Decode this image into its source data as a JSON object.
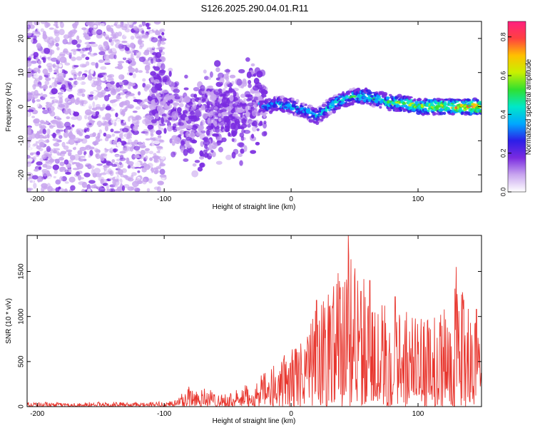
{
  "title": "S126.2025.290.04.01.R11",
  "chart_data": [
    {
      "type": "heatmap",
      "name": "spectrogram",
      "title": "S126.2025.290.04.01.R11",
      "xlabel": "Height of straight line (km)",
      "ylabel": "Frequency (Hz)",
      "xlim": [
        -208,
        150
      ],
      "ylim": [
        -25,
        25
      ],
      "xticks": [
        -200,
        -100,
        0,
        100
      ],
      "xtick_labels": [
        "-200",
        "-100",
        "0",
        "100"
      ],
      "yticks": [
        -20,
        -10,
        0,
        10,
        20
      ],
      "ytick_labels": [
        "-20",
        "-10",
        "0",
        "10",
        "20"
      ],
      "ridge": {
        "description_free": true,
        "x": [
          -110,
          -100,
          -90,
          -80,
          -70,
          -60,
          -50,
          -40,
          -30,
          -20,
          -10,
          0,
          10,
          20,
          30,
          40,
          50,
          60,
          70,
          80,
          90,
          100,
          110,
          120,
          130,
          140,
          150
        ],
        "freq": [
          8,
          3,
          -1,
          -5,
          -4,
          -1,
          -3,
          -2,
          1,
          0,
          1,
          0,
          -1,
          -3,
          0,
          2,
          3,
          3,
          2,
          1,
          1,
          0,
          0,
          0,
          0,
          0,
          0
        ],
        "peak_amplitude": [
          0.15,
          0.2,
          0.2,
          0.22,
          0.2,
          0.2,
          0.2,
          0.22,
          0.3,
          0.38,
          0.42,
          0.45,
          0.42,
          0.42,
          0.48,
          0.5,
          0.5,
          0.52,
          0.5,
          0.6,
          0.65,
          0.6,
          0.7,
          0.75,
          0.78,
          0.8,
          0.82
        ]
      },
      "colorbar": {
        "label": "Normalized spectral amplitude",
        "range": [
          0.0,
          0.88
        ],
        "ticks": [
          0.0,
          0.2,
          0.4,
          0.6,
          0.8
        ],
        "tick_labels": [
          "0.0",
          "0.2",
          "0.4",
          "0.6",
          "0.8"
        ],
        "colors": [
          "#ffffff",
          "#c9a6ef",
          "#7a2be0",
          "#2c1ee8",
          "#00a8ff",
          "#00e8c8",
          "#30e030",
          "#c8f000",
          "#ffc000",
          "#ff4040",
          "#ff2080"
        ]
      }
    },
    {
      "type": "line",
      "name": "snr",
      "xlabel": "Height of straight line (km)",
      "ylabel": "SNR (10 * v/v)",
      "xlim": [
        -208,
        150
      ],
      "ylim": [
        0,
        1900
      ],
      "xticks": [
        -200,
        -100,
        0,
        100
      ],
      "xtick_labels": [
        "-200",
        "-100",
        "0",
        "100"
      ],
      "yticks": [
        0,
        500,
        1000,
        1500
      ],
      "ytick_labels": [
        "0",
        "500",
        "1000",
        "1500"
      ],
      "color": "#e8372f",
      "envelope": {
        "x": [
          -208,
          -180,
          -150,
          -120,
          -100,
          -90,
          -80,
          -70,
          -60,
          -50,
          -40,
          -30,
          -20,
          -10,
          0,
          10,
          20,
          30,
          40,
          45,
          50,
          60,
          70,
          80,
          90,
          100,
          110,
          120,
          130,
          140,
          150
        ],
        "y": [
          60,
          40,
          55,
          45,
          60,
          90,
          280,
          230,
          180,
          150,
          200,
          300,
          380,
          520,
          650,
          800,
          1100,
          1300,
          1480,
          1900,
          1600,
          1400,
          1300,
          1150,
          1100,
          1000,
          1000,
          1050,
          1550,
          1080,
          800
        ]
      },
      "peaks": [
        {
          "x": 45,
          "y": 1900
        },
        {
          "x": 37,
          "y": 1480
        },
        {
          "x": 62,
          "y": 1400
        },
        {
          "x": 130,
          "y": 1550
        },
        {
          "x": 55,
          "y": 1280
        },
        {
          "x": 82,
          "y": 1220
        },
        {
          "x": 20,
          "y": 1180
        },
        {
          "x": 146,
          "y": 1080
        }
      ]
    }
  ]
}
